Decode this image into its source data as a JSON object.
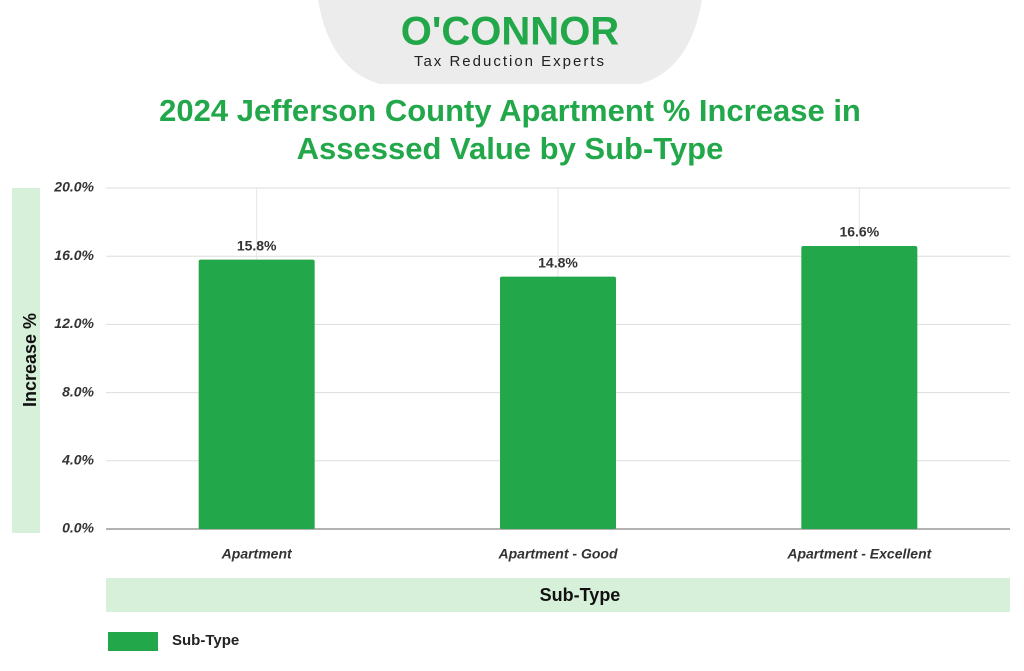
{
  "logo": {
    "name": "O'CONNOR",
    "tagline": "Tax Reduction Experts"
  },
  "chart_data": {
    "type": "bar",
    "title": "2024 Jefferson County Apartment % Increase in Assessed Value by Sub-Type",
    "x_label": "Sub-Type",
    "y_label": "Increase %",
    "categories": [
      "Apartment",
      "Apartment - Good",
      "Apartment - Excellent"
    ],
    "series": [
      {
        "name": "Sub-Type",
        "color": "#22a84a",
        "values": [
          15.8,
          14.8,
          16.6
        ],
        "value_labels": [
          "15.8%",
          "14.8%",
          "16.6%"
        ]
      }
    ],
    "ylim": [
      0,
      20
    ],
    "yticks": [
      {
        "value": 0,
        "label": "0.0%"
      },
      {
        "value": 4,
        "label": "4.0%"
      },
      {
        "value": 8,
        "label": "8.0%"
      },
      {
        "value": 12,
        "label": "12.0%"
      },
      {
        "value": 16,
        "label": "16.0%"
      },
      {
        "value": 20,
        "label": "20.0%"
      }
    ],
    "grid": true,
    "legend": "bottom-left"
  }
}
